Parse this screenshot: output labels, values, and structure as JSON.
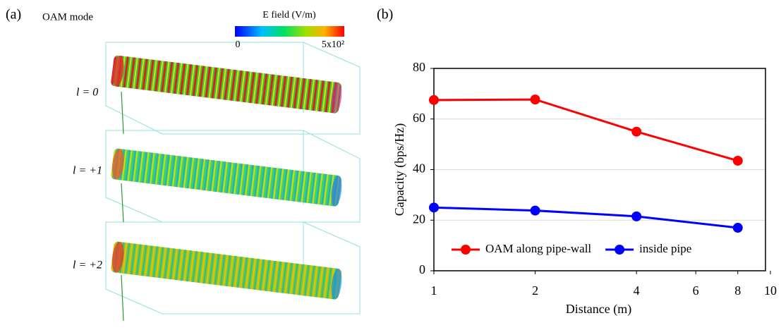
{
  "panel_a": {
    "label": "(a)",
    "mode_title": "OAM mode",
    "colorbar_title": "E field (V/m)",
    "colorbar_min": "0",
    "colorbar_max": "5x10²",
    "rows": [
      "l = 0",
      "l = +1",
      "l = +2"
    ]
  },
  "chart_data": {
    "type": "line",
    "panel_label": "(b)",
    "x_label": "Distance (m)",
    "y_label": "Capacity (bps/Hz)",
    "x": [
      1,
      2,
      4,
      8
    ],
    "series": [
      {
        "name": "OAM along pipe-wall",
        "color": "#ff0000",
        "values": [
          67.5,
          67.7,
          55,
          43.5
        ]
      },
      {
        "name": "inside pipe",
        "color": "#0000ff",
        "values": [
          25,
          23.8,
          21.5,
          17
        ]
      }
    ],
    "xlim": [
      1,
      10
    ],
    "xticks": [
      1,
      2,
      4,
      6,
      8,
      10
    ],
    "x_log": true,
    "ylim": [
      0,
      80
    ],
    "yticks": [
      0,
      20,
      40,
      60,
      80
    ],
    "grid": true,
    "legend": "lower center"
  }
}
